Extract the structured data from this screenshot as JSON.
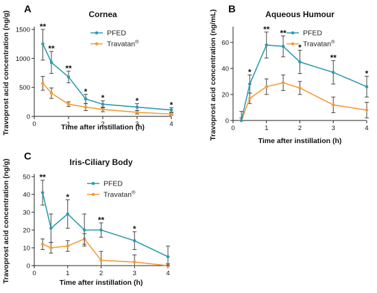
{
  "colors": {
    "pfed": "#2a9bb0",
    "travatan": "#f39b35"
  },
  "chart_data": [
    {
      "type": "line",
      "panel": "A",
      "title": "Cornea",
      "xlabel": "Time after instillation (h)",
      "ylabel": "Travoprost acid concentration (ng/g)",
      "xlim": [
        0,
        4
      ],
      "ylim": [
        0,
        1500
      ],
      "xticks": [
        "0",
        "1",
        "2",
        "3",
        "4"
      ],
      "yticks": [
        "0",
        "500",
        "1000",
        "1500"
      ],
      "legend_position": "top-right",
      "x": [
        0.25,
        0.5,
        1,
        1.5,
        2,
        3,
        4
      ],
      "series": [
        {
          "name": "PFED",
          "values": [
            1250,
            930,
            680,
            300,
            210,
            160,
            110
          ],
          "errors": [
            280,
            190,
            100,
            80,
            60,
            60,
            40
          ]
        },
        {
          "name": "Travatan",
          "superscript": "®",
          "values": [
            570,
            400,
            210,
            160,
            120,
            70,
            40
          ],
          "errors": [
            120,
            90,
            40,
            60,
            40,
            30,
            20
          ]
        }
      ],
      "significance": [
        "**",
        "**",
        "**",
        "*",
        "*",
        "*",
        "*"
      ]
    },
    {
      "type": "line",
      "panel": "B",
      "title": "Aqueous Humour",
      "xlabel": "Time after instillation (h)",
      "ylabel": "Travoprost acid concentration (ng/mL)",
      "xlim": [
        0,
        4
      ],
      "ylim": [
        0,
        70
      ],
      "xticks": [
        "0",
        "1",
        "2",
        "3",
        "4"
      ],
      "yticks": [
        "0",
        "20",
        "40",
        "60"
      ],
      "legend_position": "top-right",
      "x": [
        0.25,
        0.5,
        1,
        1.5,
        2,
        3,
        4
      ],
      "series": [
        {
          "name": "PFED",
          "values": [
            0,
            28,
            58,
            57,
            45,
            37,
            26
          ],
          "errors": [
            7,
            7,
            10,
            8,
            9,
            9,
            8
          ]
        },
        {
          "name": "Travatan",
          "superscript": "®",
          "values": [
            0,
            17,
            26,
            29,
            25,
            12,
            8
          ],
          "errors": [
            2,
            4,
            6,
            6,
            5,
            6,
            6
          ]
        }
      ],
      "significance": [
        "",
        "*",
        "**",
        "**",
        "*",
        "**",
        "*"
      ]
    },
    {
      "type": "line",
      "panel": "C",
      "title": "Iris-Ciliary Body",
      "xlabel": "Time after instillation (h)",
      "ylabel": "Travoprost acid concentration (ng/g)",
      "xlim": [
        0,
        4
      ],
      "ylim": [
        0,
        50
      ],
      "xticks": [
        "0",
        "1",
        "2",
        "3",
        "4"
      ],
      "yticks": [
        "0",
        "10",
        "20",
        "30",
        "40",
        "50"
      ],
      "legend_position": "top-right",
      "x": [
        0.25,
        0.5,
        1,
        1.5,
        2,
        3,
        4
      ],
      "series": [
        {
          "name": "PFED",
          "values": [
            41,
            21,
            29,
            20,
            20,
            14,
            5
          ],
          "errors": [
            7,
            8,
            8,
            9,
            4,
            5,
            6
          ]
        },
        {
          "name": "Travatan",
          "superscript": "®",
          "values": [
            12,
            10,
            11,
            15,
            3,
            2,
            0
          ],
          "errors": [
            3,
            3,
            3,
            3,
            5,
            4,
            1
          ]
        }
      ],
      "significance": [
        "**",
        "",
        "*",
        "",
        "**",
        "*",
        ""
      ]
    }
  ]
}
